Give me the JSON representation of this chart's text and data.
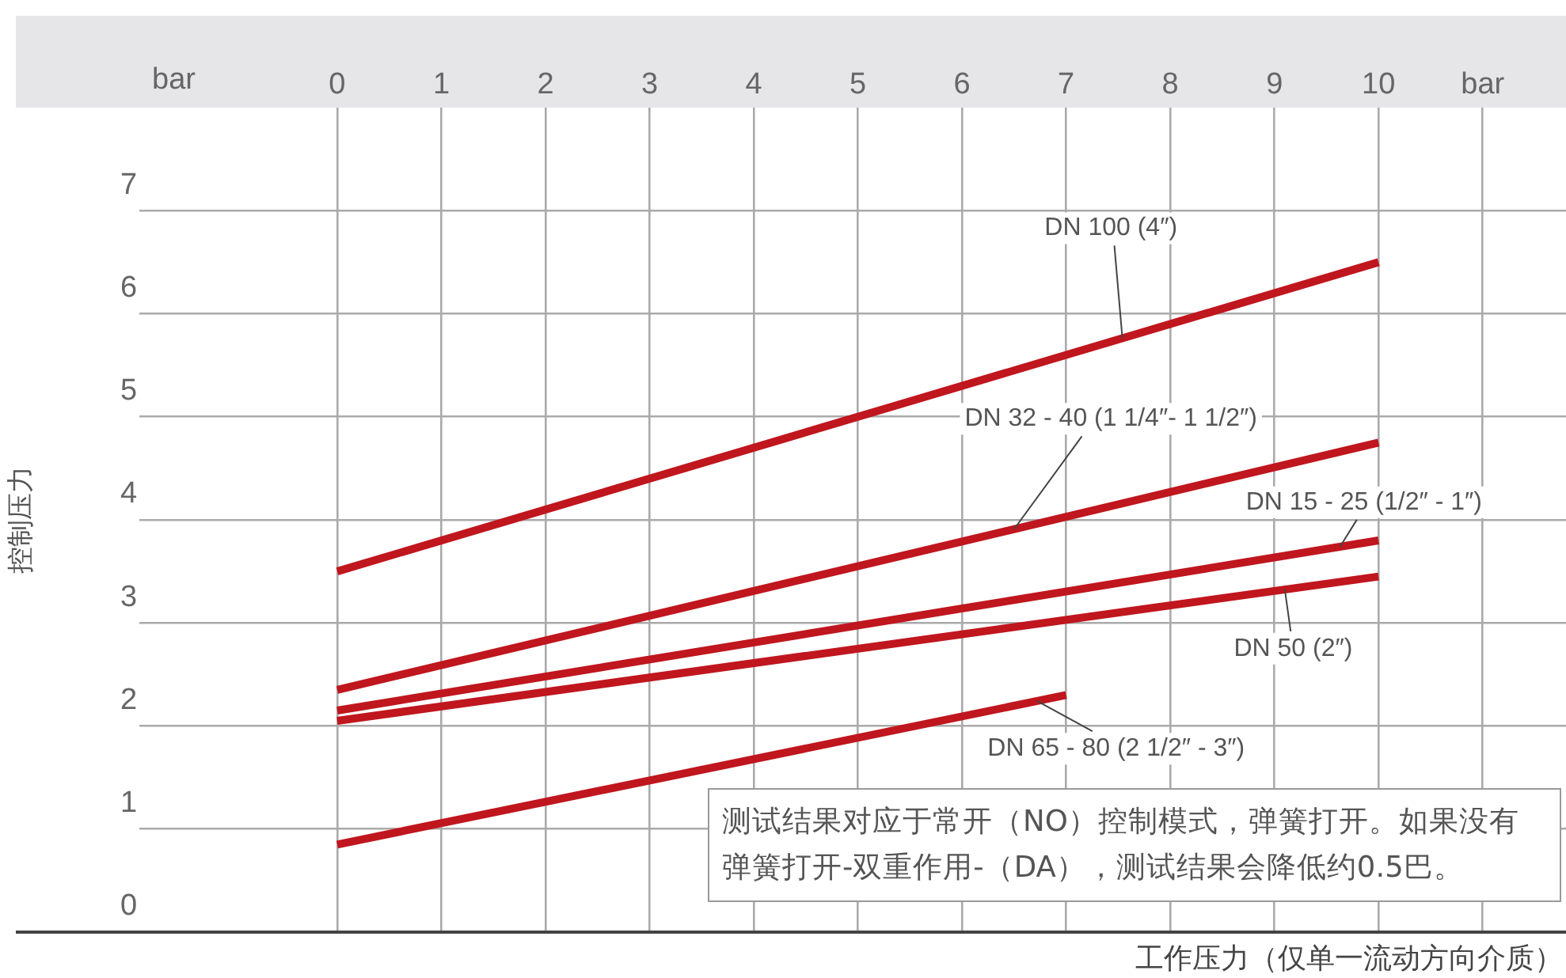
{
  "chart_data": {
    "type": "line",
    "xlabel": "工作压力（仅单一流动方向介质）",
    "ylabel": "控制压力",
    "xlim": [
      -1.9,
      11.8
    ],
    "xticks": [
      0,
      1,
      2,
      3,
      4,
      5,
      6,
      7,
      8,
      9,
      10,
      {
        "value": 11,
        "label": "bar"
      }
    ],
    "ylim": [
      0,
      8
    ],
    "yticks": [
      0,
      1,
      2,
      3,
      4,
      5,
      6,
      7
    ],
    "grid": true,
    "legend": false,
    "marker": "none",
    "line_style": "solid",
    "annotations": [
      "bar",
      "测试结果对应于常开（NO）控制模式，弹簧打开。如果没有弹簧打开-双重作用-（DA），测试结果会降低约0.5巴。"
    ],
    "series": [
      {
        "name": "DN 100 (4″)",
        "color": "#c0161e",
        "x": [
          0,
          10
        ],
        "values": [
          3.5,
          6.5
        ]
      },
      {
        "name": "DN 32 - 40 (1 1/4″- 1 1/2″)",
        "color": "#c0161e",
        "x": [
          0,
          10
        ],
        "values": [
          2.35,
          4.75
        ]
      },
      {
        "name": "DN 15 - 25 (1/2″ - 1″)",
        "color": "#c0161e",
        "x": [
          0,
          10
        ],
        "values": [
          2.15,
          3.8
        ]
      },
      {
        "name": "DN 50 (2″)",
        "color": "#c0161e",
        "x": [
          0,
          10
        ],
        "values": [
          2.05,
          3.45
        ]
      },
      {
        "name": "DN 65 - 80 (2 1/2″ - 3″)",
        "color": "#c0161e",
        "x": [
          0,
          7
        ],
        "values": [
          0.85,
          2.3
        ]
      }
    ]
  }
}
